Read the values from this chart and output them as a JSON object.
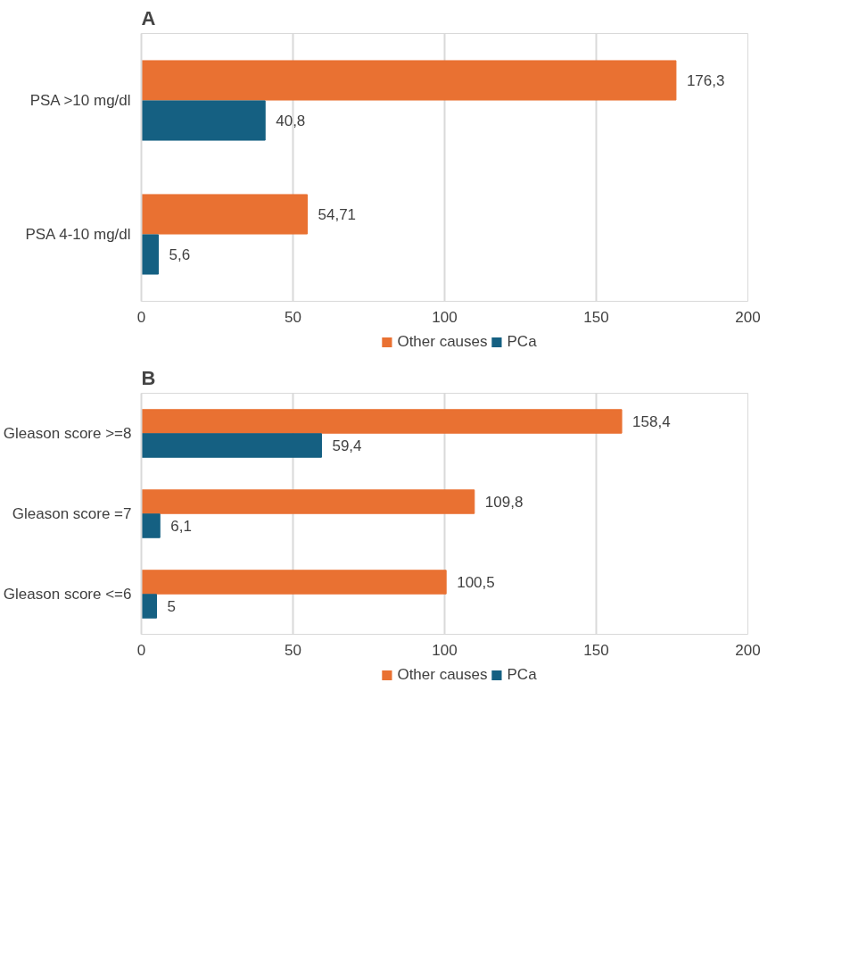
{
  "chart_data": [
    {
      "type": "bar",
      "title": "A",
      "orientation": "horizontal",
      "categories": [
        "PSA >10 mg/dl",
        "PSA 4-10 mg/dl"
      ],
      "series": [
        {
          "name": "Other causes",
          "color": "#e97132",
          "values": [
            176.3,
            54.71
          ],
          "value_labels": [
            "176,3",
            "54,71"
          ]
        },
        {
          "name": "PCa",
          "color": "#156082",
          "values": [
            40.8,
            5.6
          ],
          "value_labels": [
            "40,8",
            "5,6"
          ]
        }
      ],
      "xlim": [
        0,
        200
      ],
      "xticks": [
        0,
        50,
        100,
        150,
        200
      ],
      "grid": "x",
      "legend": "bottom"
    },
    {
      "type": "bar",
      "title": "B",
      "orientation": "horizontal",
      "categories": [
        "Gleason score >=8",
        "Gleason score =7",
        "Gleason score <=6"
      ],
      "series": [
        {
          "name": "Other causes",
          "color": "#e97132",
          "values": [
            158.4,
            109.8,
            100.5
          ],
          "value_labels": [
            "158,4",
            "109,8",
            "100,5"
          ]
        },
        {
          "name": "PCa",
          "color": "#156082",
          "values": [
            59.4,
            6.1,
            5
          ],
          "value_labels": [
            "59,4",
            "6,1",
            "5"
          ]
        }
      ],
      "xlim": [
        0,
        200
      ],
      "xticks": [
        0,
        50,
        100,
        150,
        200
      ],
      "grid": "x",
      "legend": "bottom"
    }
  ]
}
